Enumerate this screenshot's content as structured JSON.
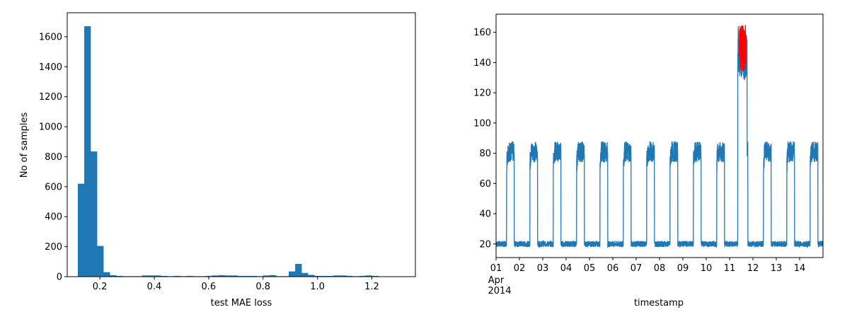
{
  "chart_data": [
    {
      "type": "bar",
      "xlabel": "test MAE loss",
      "ylabel": "No of samples",
      "xlim": [
        0.08,
        1.36
      ],
      "ylim": [
        0,
        1760
      ],
      "xticks": [
        0.2,
        0.4,
        0.6,
        0.8,
        1.0,
        1.2
      ],
      "xtick_labels": [
        "0.2",
        "0.4",
        "0.6",
        "0.8",
        "1.0",
        "1.2"
      ],
      "yticks": [
        0,
        200,
        400,
        600,
        800,
        1000,
        1200,
        1400,
        1600
      ],
      "ytick_labels": [
        "0",
        "200",
        "400",
        "600",
        "800",
        "1000",
        "1200",
        "1400",
        "1600"
      ],
      "color": "#1f77b4",
      "bin_start": 0.119,
      "bin_width": 0.0235,
      "values": [
        620,
        1670,
        835,
        205,
        30,
        10,
        5,
        3,
        3,
        3,
        8,
        8,
        8,
        5,
        3,
        5,
        3,
        5,
        3,
        3,
        5,
        8,
        10,
        8,
        8,
        5,
        5,
        5,
        3,
        8,
        10,
        3,
        3,
        35,
        85,
        25,
        12,
        5,
        5,
        5,
        8,
        8,
        5,
        3,
        5,
        8,
        5
      ]
    },
    {
      "type": "line",
      "xlabel": "timestamp",
      "xlim_days": [
        1,
        15
      ],
      "ylim": [
        11,
        172
      ],
      "yticks": [
        20,
        40,
        60,
        80,
        100,
        120,
        140,
        160
      ],
      "ytick_labels": [
        "20",
        "40",
        "60",
        "80",
        "100",
        "120",
        "140",
        "160"
      ],
      "xtick_days": [
        1,
        2,
        3,
        4,
        5,
        6,
        7,
        8,
        9,
        10,
        11,
        12,
        13,
        14
      ],
      "xtick_labels": [
        "01",
        "02",
        "03",
        "04",
        "05",
        "06",
        "07",
        "08",
        "09",
        "10",
        "11",
        "12",
        "13",
        "14"
      ],
      "xtick_sublabels": [
        "Apr",
        "2014"
      ],
      "series": [
        {
          "color": "#1f77b4",
          "low_level": 20,
          "high_level": 80,
          "daily_high_window_days": [
            1.45,
            1.78
          ],
          "spike_window_days": [
            11.35,
            11.75
          ],
          "spike_peak": 165
        },
        {
          "color": "#ff0000",
          "points": [
            [
              11.42,
              130
            ],
            [
              11.45,
              162
            ],
            [
              11.5,
              140
            ],
            [
              11.55,
              165
            ],
            [
              11.6,
              138
            ],
            [
              11.66,
              165
            ],
            [
              11.7,
              150
            ]
          ]
        }
      ]
    }
  ]
}
